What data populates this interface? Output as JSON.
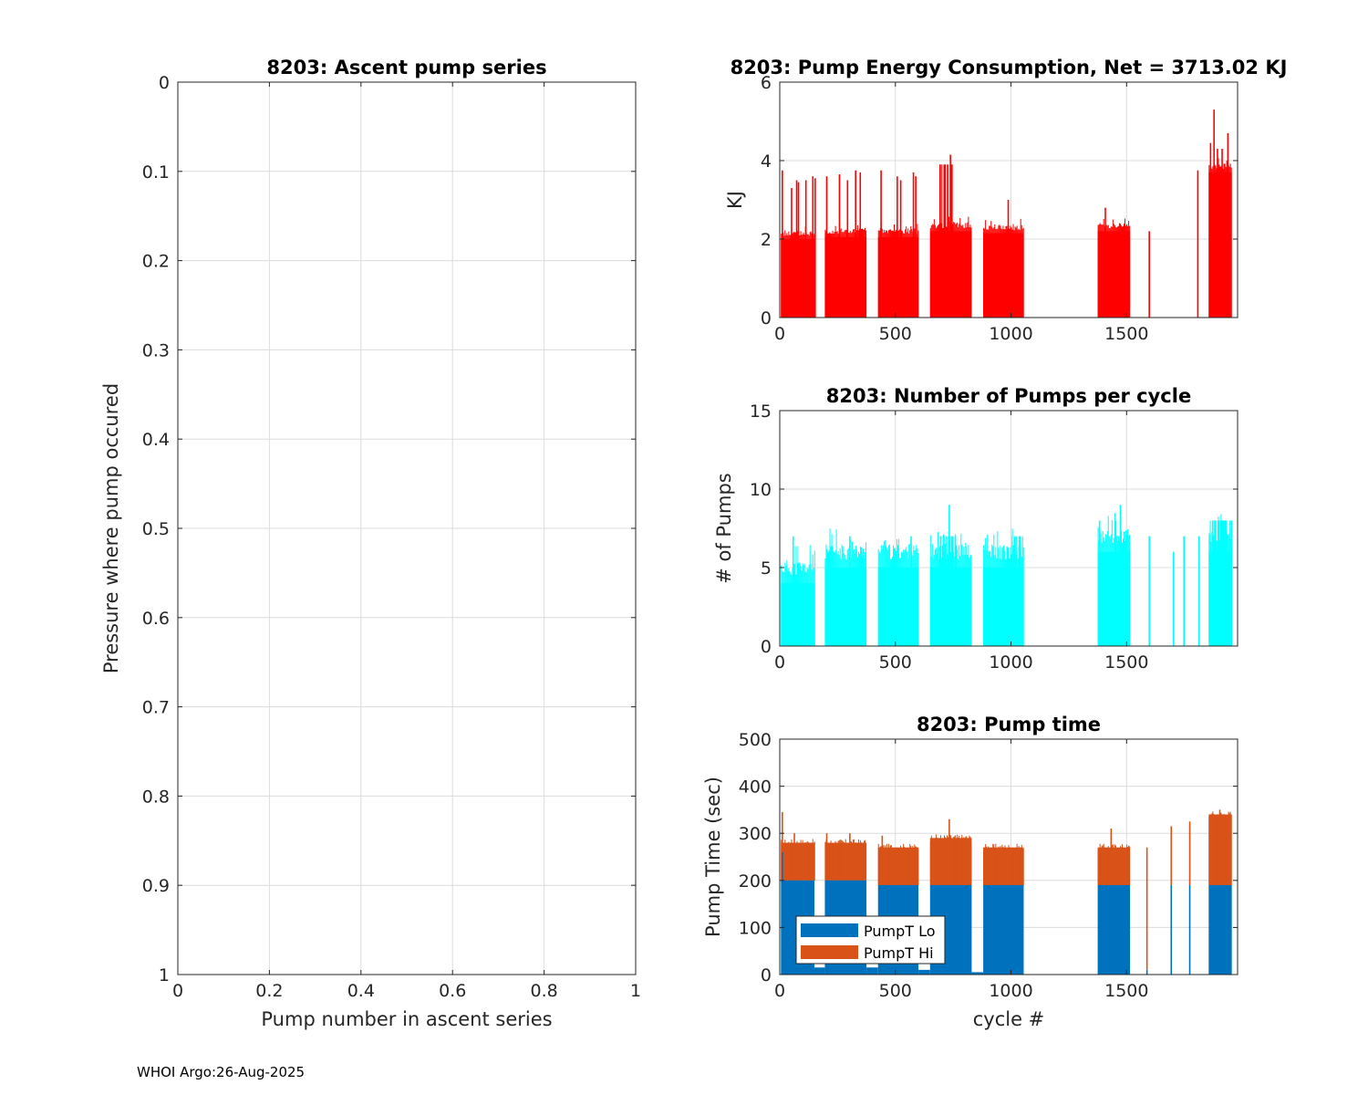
{
  "footer": "WHOI Argo:26-Aug-2025",
  "chart_data": [
    {
      "id": "ascent",
      "type": "scatter",
      "title": "8203: Ascent pump series",
      "xlabel": "Pump number in ascent series",
      "ylabel": "Pressure where pump occured",
      "xlim": [
        0,
        1
      ],
      "ylim": [
        0,
        1
      ],
      "y_reversed": true,
      "grid": true,
      "xticks": [
        0,
        0.2,
        0.4,
        0.6,
        0.8,
        1
      ],
      "xtick_labels": [
        "0",
        "0.2",
        "0.4",
        "0.6",
        "0.8",
        "1"
      ],
      "yticks": [
        0,
        0.1,
        0.2,
        0.3,
        0.4,
        0.5,
        0.6,
        0.7,
        0.8,
        0.9,
        1
      ],
      "ytick_labels": [
        "0",
        "0.1",
        "0.2",
        "0.3",
        "0.4",
        "0.5",
        "0.6",
        "0.7",
        "0.8",
        "0.9",
        "1"
      ],
      "series": []
    },
    {
      "id": "energy",
      "type": "bar",
      "title": "8203: Pump Energy Consumption,  Net = 3713.02 KJ",
      "xlabel": "",
      "ylabel": "KJ",
      "xlim": [
        0,
        1980
      ],
      "ylim": [
        0,
        6
      ],
      "grid": true,
      "xticks": [
        0,
        500,
        1000,
        1500
      ],
      "xtick_labels": [
        "0",
        "500",
        "1000",
        "1500"
      ],
      "yticks": [
        0,
        2,
        4,
        6
      ],
      "ytick_labels": [
        "0",
        "2",
        "4",
        "6"
      ],
      "color": "#ff0000",
      "base_blocks": [
        {
          "x0": 5,
          "x1": 150,
          "v": 2.15
        },
        {
          "x0": 195,
          "x1": 375,
          "v": 2.2
        },
        {
          "x0": 425,
          "x1": 600,
          "v": 2.2
        },
        {
          "x0": 650,
          "x1": 830,
          "v": 2.35
        },
        {
          "x0": 880,
          "x1": 1055,
          "v": 2.3
        },
        {
          "x0": 1375,
          "x1": 1515,
          "v": 2.35
        },
        {
          "x0": 1855,
          "x1": 1955,
          "v": 3.85
        }
      ],
      "block_jitter": 0.15,
      "extra_blocks": [
        {
          "x0": 690,
          "x1": 745,
          "v": 3.9
        }
      ],
      "spikes": [
        {
          "x": 8,
          "v": 3.75
        },
        {
          "x": 48,
          "v": 3.3
        },
        {
          "x": 70,
          "v": 3.5
        },
        {
          "x": 78,
          "v": 3.45
        },
        {
          "x": 110,
          "v": 3.5
        },
        {
          "x": 140,
          "v": 3.6
        },
        {
          "x": 150,
          "v": 3.55
        },
        {
          "x": 200,
          "v": 3.6
        },
        {
          "x": 255,
          "v": 3.65
        },
        {
          "x": 290,
          "v": 3.5
        },
        {
          "x": 325,
          "v": 3.75
        },
        {
          "x": 345,
          "v": 3.7
        },
        {
          "x": 435,
          "v": 3.75
        },
        {
          "x": 505,
          "v": 3.6
        },
        {
          "x": 520,
          "v": 3.5
        },
        {
          "x": 575,
          "v": 3.7
        },
        {
          "x": 585,
          "v": 3.6
        },
        {
          "x": 735,
          "v": 4.15
        },
        {
          "x": 985,
          "v": 3.0
        },
        {
          "x": 1405,
          "v": 2.8
        },
        {
          "x": 1595,
          "v": 2.2
        },
        {
          "x": 1805,
          "v": 3.75
        },
        {
          "x": 1860,
          "v": 4.45
        },
        {
          "x": 1875,
          "v": 5.3
        },
        {
          "x": 1890,
          "v": 4.3
        },
        {
          "x": 1910,
          "v": 4.3
        },
        {
          "x": 1935,
          "v": 4.7
        }
      ]
    },
    {
      "id": "pumps",
      "type": "bar",
      "title": "8203: Number of Pumps per cycle",
      "xlabel": "",
      "ylabel": "# of Pumps",
      "xlim": [
        0,
        1980
      ],
      "ylim": [
        0,
        15
      ],
      "grid": true,
      "xticks": [
        0,
        500,
        1000,
        1500
      ],
      "xtick_labels": [
        "0",
        "500",
        "1000",
        "1500"
      ],
      "yticks": [
        0,
        5,
        10,
        15
      ],
      "ytick_labels": [
        "0",
        "5",
        "10",
        "15"
      ],
      "color": "#00ffff",
      "base_blocks": [
        {
          "x0": 5,
          "x1": 150,
          "v": 5
        },
        {
          "x0": 195,
          "x1": 375,
          "v": 6
        },
        {
          "x0": 425,
          "x1": 600,
          "v": 6
        },
        {
          "x0": 650,
          "x1": 830,
          "v": 6
        },
        {
          "x0": 880,
          "x1": 1055,
          "v": 6
        },
        {
          "x0": 1375,
          "x1": 1515,
          "v": 7
        },
        {
          "x0": 1855,
          "x1": 1955,
          "v": 7
        }
      ],
      "block_jitter": 1,
      "extra_blocks": [
        {
          "x0": 690,
          "x1": 760,
          "v": 7
        },
        {
          "x0": 1000,
          "x1": 1055,
          "v": 7
        },
        {
          "x0": 1860,
          "x1": 1955,
          "v": 8
        }
      ],
      "spikes": [
        {
          "x": 55,
          "v": 7
        },
        {
          "x": 300,
          "v": 7
        },
        {
          "x": 565,
          "v": 7
        },
        {
          "x": 730,
          "v": 9
        },
        {
          "x": 1380,
          "v": 8
        },
        {
          "x": 1450,
          "v": 8
        },
        {
          "x": 1470,
          "v": 9
        },
        {
          "x": 1595,
          "v": 7
        },
        {
          "x": 1700,
          "v": 6
        },
        {
          "x": 1745,
          "v": 7
        },
        {
          "x": 1810,
          "v": 7
        }
      ]
    },
    {
      "id": "pumptime",
      "type": "bar",
      "stacked": true,
      "title": "8203: Pump time",
      "xlabel": "cycle #",
      "ylabel": "Pump Time (sec)",
      "xlim": [
        0,
        1980
      ],
      "ylim": [
        0,
        500
      ],
      "grid": true,
      "xticks": [
        0,
        500,
        1000,
        1500
      ],
      "xtick_labels": [
        "0",
        "500",
        "1000",
        "1500"
      ],
      "yticks": [
        0,
        100,
        200,
        300,
        400,
        500
      ],
      "ytick_labels": [
        "0",
        "100",
        "200",
        "300",
        "400",
        "500"
      ],
      "legend": {
        "location": "bottom-left",
        "entries": [
          {
            "label": "PumpT Lo",
            "color": "#0072bd"
          },
          {
            "label": "PumpT Hi",
            "color": "#d95319"
          }
        ]
      },
      "blocks": [
        {
          "x0": 5,
          "x1": 150,
          "lo": 200,
          "total": 280
        },
        {
          "x0": 195,
          "x1": 375,
          "lo": 200,
          "total": 280
        },
        {
          "x0": 425,
          "x1": 600,
          "lo": 190,
          "total": 270
        },
        {
          "x0": 650,
          "x1": 830,
          "lo": 190,
          "total": 290
        },
        {
          "x0": 880,
          "x1": 1055,
          "lo": 190,
          "total": 270
        },
        {
          "x0": 1375,
          "x1": 1515,
          "lo": 190,
          "total": 270
        },
        {
          "x0": 1855,
          "x1": 1955,
          "lo": 190,
          "total": 340
        }
      ],
      "low_blocks": [
        {
          "x0": 150,
          "x1": 195,
          "lo": 15
        },
        {
          "x0": 375,
          "x1": 425,
          "lo": 15
        },
        {
          "x0": 600,
          "x1": 650,
          "lo": 10
        },
        {
          "x0": 830,
          "x1": 880,
          "lo": 5
        }
      ],
      "spikes": [
        {
          "x": 8,
          "lo": 260,
          "total": 345
        },
        {
          "x": 60,
          "lo": 200,
          "total": 300
        },
        {
          "x": 200,
          "lo": 200,
          "total": 300
        },
        {
          "x": 300,
          "lo": 200,
          "total": 300
        },
        {
          "x": 440,
          "lo": 190,
          "total": 295
        },
        {
          "x": 730,
          "lo": 190,
          "total": 330
        },
        {
          "x": 1430,
          "lo": 190,
          "total": 310
        },
        {
          "x": 1585,
          "lo": 10,
          "total": 270
        },
        {
          "x": 1690,
          "lo": 190,
          "total": 315
        },
        {
          "x": 1770,
          "lo": 190,
          "total": 325
        },
        {
          "x": 1900,
          "lo": 190,
          "total": 350
        }
      ]
    }
  ]
}
